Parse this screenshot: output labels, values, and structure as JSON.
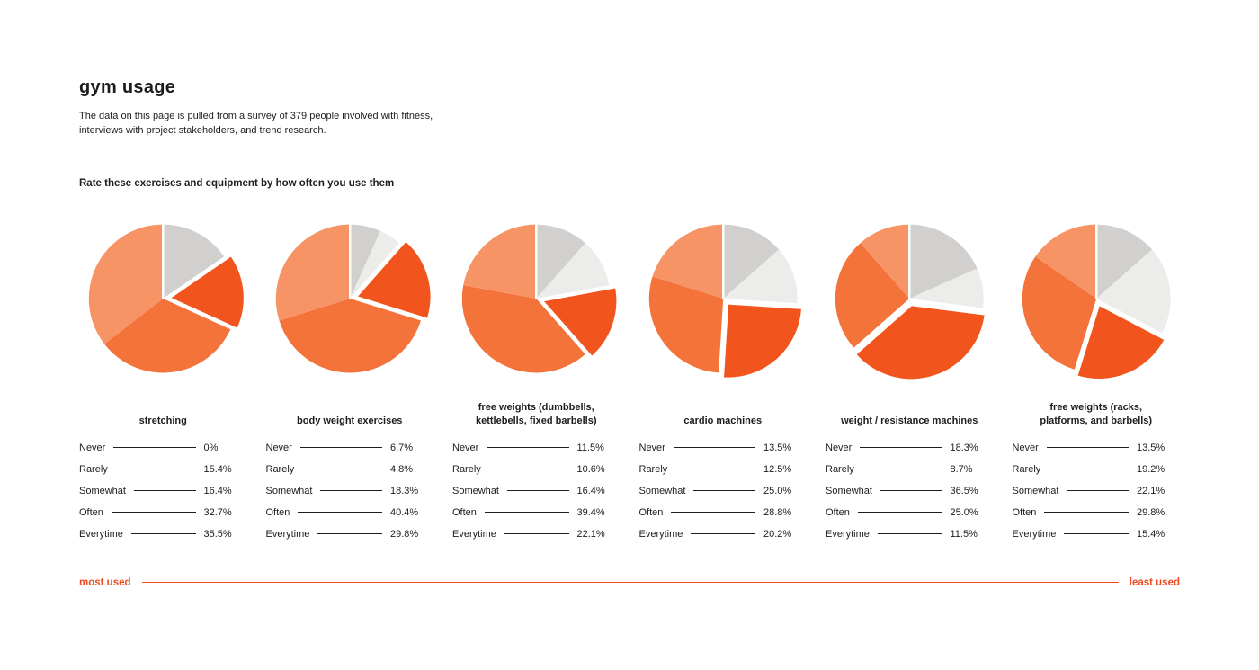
{
  "page": {
    "title": "gym usage",
    "intro": "The data on this page is pulled from a survey of 379 people involved with fitness,\ninterviews with project stakeholders, and trend research.",
    "prompt": "Rate these exercises and equipment by how often you use them",
    "footer": {
      "left": "most used",
      "right": "least used"
    },
    "accent_color": "#ef4b20",
    "text_color": "#1d1d1b"
  },
  "legend": {
    "categories": [
      "Never",
      "Rarely",
      "Somewhat",
      "Often",
      "Everytime"
    ],
    "colors": {
      "Never": "#d2d0cf",
      "Rarely": "#ececeb",
      "Somewhat": "#f2541d",
      "Often": "#f3733a",
      "Everytime": "#f69466"
    },
    "exploded_category": "Somewhat"
  },
  "chart_data": [
    {
      "type": "pie",
      "title": "stretching",
      "categories": [
        "Never",
        "Rarely",
        "Somewhat",
        "Often",
        "Everytime"
      ],
      "values": [
        0,
        15.4,
        16.4,
        32.7,
        35.5
      ],
      "value_labels": [
        "0%",
        "15.4%",
        "16.4%",
        "32.7%",
        "35.5%"
      ],
      "color_overrides": {
        "Rarely": "#d2d0cf"
      }
    },
    {
      "type": "pie",
      "title": "body weight exercises",
      "categories": [
        "Never",
        "Rarely",
        "Somewhat",
        "Often",
        "Everytime"
      ],
      "values": [
        6.7,
        4.8,
        18.3,
        40.4,
        29.8
      ],
      "value_labels": [
        "6.7%",
        "4.8%",
        "18.3%",
        "40.4%",
        "29.8%"
      ]
    },
    {
      "type": "pie",
      "title": "free weights (dumbbells,\nkettlebells, fixed barbells)",
      "categories": [
        "Never",
        "Rarely",
        "Somewhat",
        "Often",
        "Everytime"
      ],
      "values": [
        11.5,
        10.6,
        16.4,
        39.4,
        22.1
      ],
      "value_labels": [
        "11.5%",
        "10.6%",
        "16.4%",
        "39.4%",
        "22.1%"
      ]
    },
    {
      "type": "pie",
      "title": "cardio machines",
      "categories": [
        "Never",
        "Rarely",
        "Somewhat",
        "Often",
        "Everytime"
      ],
      "values": [
        13.5,
        12.5,
        25.0,
        28.8,
        20.2
      ],
      "value_labels": [
        "13.5%",
        "12.5%",
        "25.0%",
        "28.8%",
        "20.2%"
      ]
    },
    {
      "type": "pie",
      "title": "weight / resistance machines",
      "categories": [
        "Never",
        "Rarely",
        "Somewhat",
        "Often",
        "Everytime"
      ],
      "values": [
        18.3,
        8.7,
        36.5,
        25.0,
        11.5
      ],
      "value_labels": [
        "18.3%",
        "8.7%",
        "36.5%",
        "25.0%",
        "11.5%"
      ]
    },
    {
      "type": "pie",
      "title": "free weights (racks,\nplatforms, and barbells)",
      "categories": [
        "Never",
        "Rarely",
        "Somewhat",
        "Often",
        "Everytime"
      ],
      "values": [
        13.5,
        19.2,
        22.1,
        29.8,
        15.4
      ],
      "value_labels": [
        "13.5%",
        "19.2%",
        "22.1%",
        "29.8%",
        "15.4%"
      ]
    }
  ]
}
